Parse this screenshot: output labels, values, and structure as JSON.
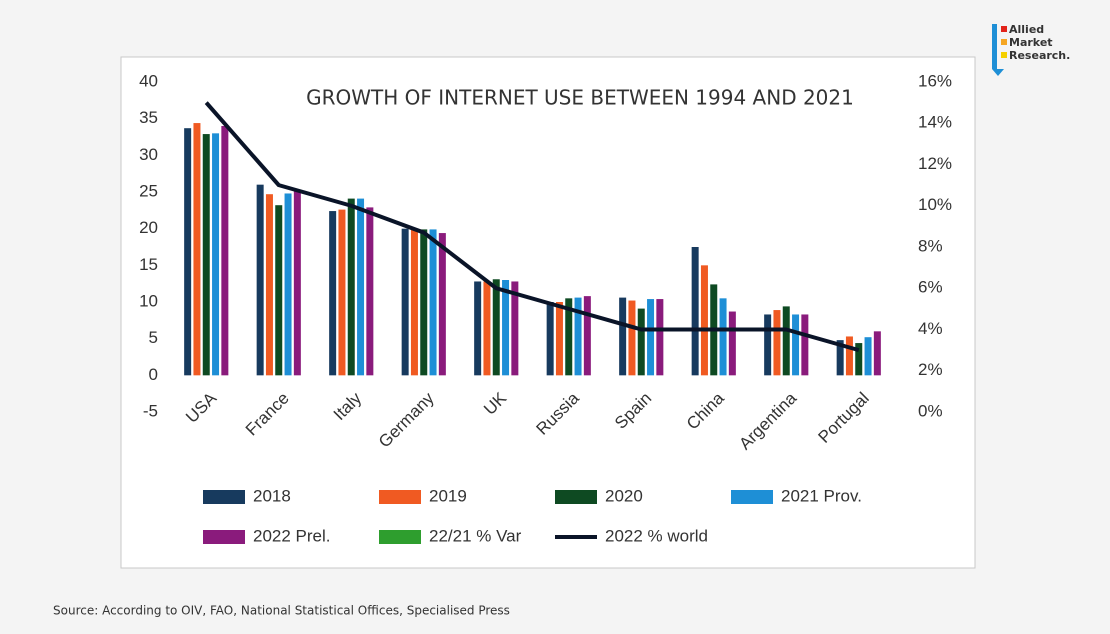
{
  "chart_data": {
    "type": "bar",
    "title": "GROWTH OF INTERNET USE BETWEEN 1994 AND 2021",
    "categories": [
      "USA",
      "France",
      "Italy",
      "Germany",
      "UK",
      "Russia",
      "Spain",
      "China",
      "Argentina",
      "Portugal"
    ],
    "ylim": [
      -5,
      40
    ],
    "yticks": [
      -5,
      0,
      5,
      10,
      15,
      20,
      25,
      30,
      35,
      40
    ],
    "y2lim": [
      0,
      16
    ],
    "y2ticks": [
      {
        "value": 0,
        "label": "0%"
      },
      {
        "value": 2,
        "label": "2%"
      },
      {
        "value": 4,
        "label": "4%"
      },
      {
        "value": 6,
        "label": "6%"
      },
      {
        "value": 8,
        "label": "8%"
      },
      {
        "value": 10,
        "label": "10%"
      },
      {
        "value": 12,
        "label": "12%"
      },
      {
        "value": 14,
        "label": "14%"
      },
      {
        "value": 16,
        "label": "16%"
      }
    ],
    "grid": false,
    "series": [
      {
        "name": "2018",
        "color": "#173a5e",
        "values": [
          33.7,
          26,
          22.4,
          20,
          12.8,
          10,
          10.6,
          17.5,
          8.3,
          4.8
        ]
      },
      {
        "name": "2019",
        "color": "#f05a22",
        "values": [
          34.4,
          24.7,
          22.6,
          19.9,
          12.8,
          10,
          10.2,
          15,
          8.9,
          5.3
        ]
      },
      {
        "name": "2020",
        "color": "#0e4a22",
        "values": [
          32.9,
          23.2,
          24.1,
          19.9,
          13.1,
          10.5,
          9.1,
          12.4,
          9.4,
          4.4
        ]
      },
      {
        "name": "2021 Prov.",
        "color": "#1e8fd6",
        "values": [
          33,
          24.8,
          24.1,
          19.9,
          13,
          10.6,
          10.4,
          10.5,
          8.3,
          5.2
        ]
      },
      {
        "name": "2022 Prel.",
        "color": "#8a1b7c",
        "values": [
          34,
          25.2,
          22.9,
          19.4,
          12.8,
          10.8,
          10.4,
          8.7,
          8.3,
          6
        ]
      },
      {
        "name": "22/21 % Var",
        "color": "#2e9e2e",
        "values": [
          null,
          null,
          null,
          null,
          null,
          null,
          null,
          null,
          null,
          null
        ]
      },
      {
        "name": "2022 % world",
        "color": "#0a1428",
        "type": "line",
        "axis": "y2",
        "values": [
          15,
          11,
          10,
          8.7,
          6,
          5,
          4,
          4,
          4,
          3
        ]
      }
    ]
  },
  "logo": [
    "Allied",
    "Market",
    "Research."
  ],
  "source": "Source: According to OIV, FAO, National Statistical Offices, Specialised Press"
}
